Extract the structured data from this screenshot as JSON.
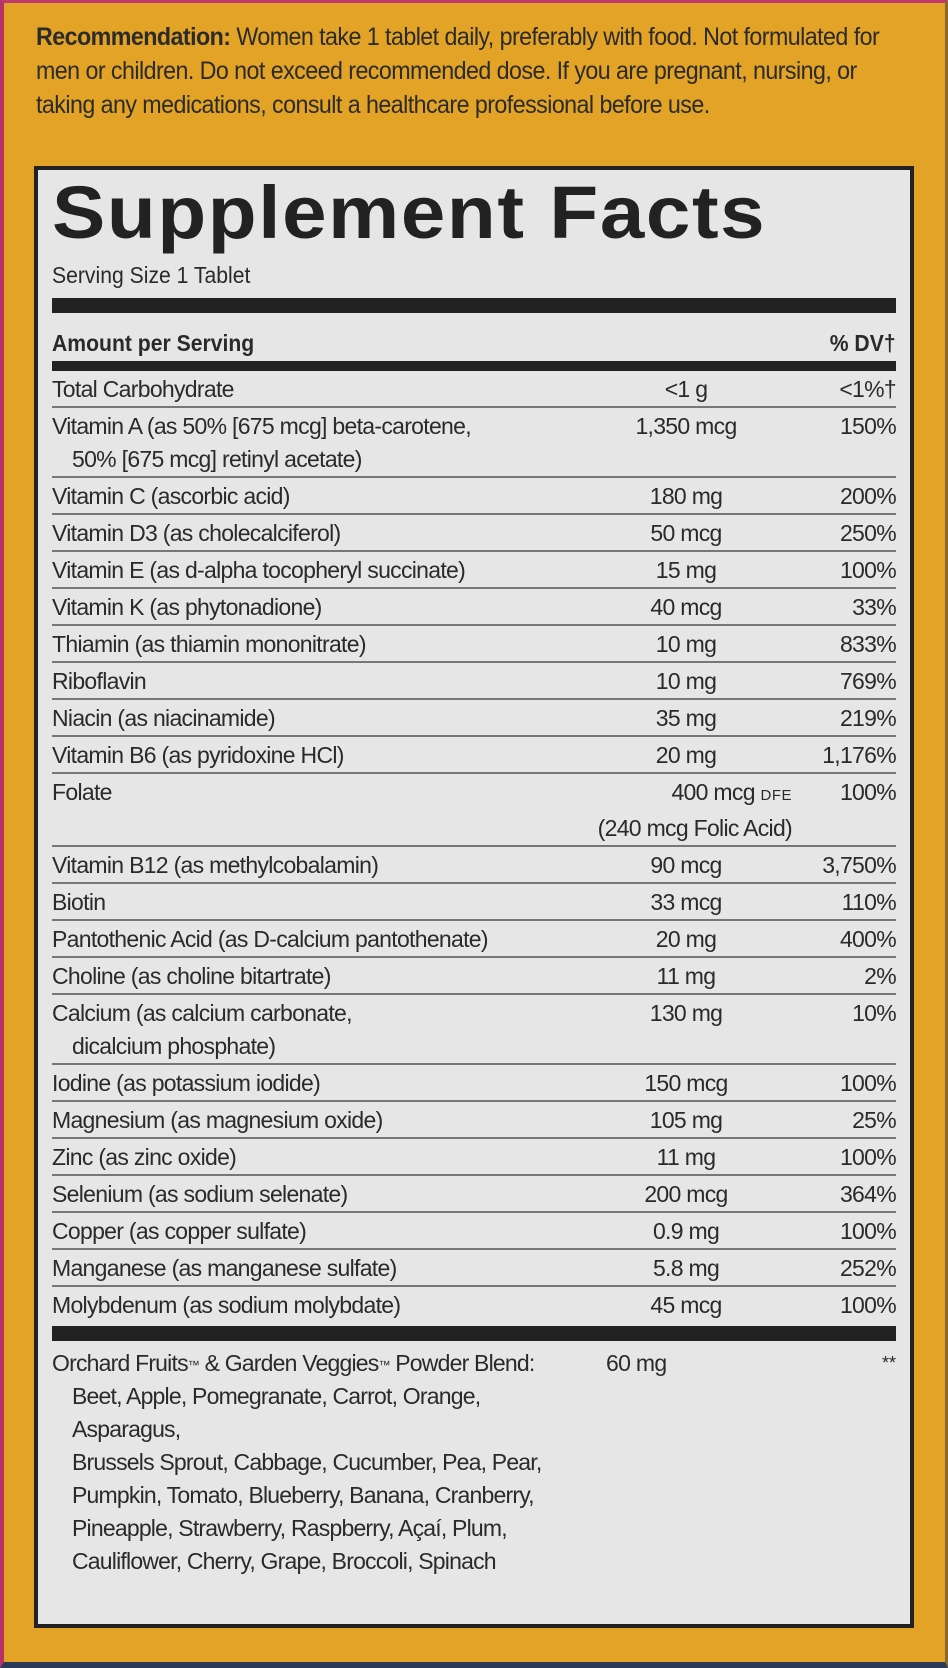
{
  "colors": {
    "background": "#e2a326",
    "panel": "#e6e6e6",
    "ink": "#222222",
    "frame_left": "#b8326a",
    "frame_bottom": "#2c3a5a"
  },
  "recommendation": {
    "label": "Recommendation:",
    "text": " Women take 1 tablet daily, preferably with food. Not formulated for men or children. Do not exceed recommended dose. If you are pregnant, nursing, or taking any medications, consult a healthcare professional before use."
  },
  "facts": {
    "title": "Supplement Facts",
    "serving_size": "Serving Size 1 Tablet",
    "header_left": "Amount per Serving",
    "header_right": "% DV†",
    "rows": [
      {
        "name": "Total Carbohydrate",
        "sub": "",
        "amount": "<1 g",
        "dv": "<1%†"
      },
      {
        "name": "Vitamin A (as 50% [675 mcg] beta-carotene,",
        "sub": "50% [675 mcg] retinyl acetate)",
        "amount": "1,350 mcg",
        "dv": "150%"
      },
      {
        "name": "Vitamin C (ascorbic acid)",
        "sub": "",
        "amount": "180 mg",
        "dv": "200%"
      },
      {
        "name": "Vitamin D3 (as cholecalciferol)",
        "sub": "",
        "amount": "50 mcg",
        "dv": "250%"
      },
      {
        "name": "Vitamin E (as d-alpha tocopheryl succinate)",
        "sub": "",
        "amount": "15 mg",
        "dv": "100%"
      },
      {
        "name": "Vitamin K (as phytonadione)",
        "sub": "",
        "amount": "40 mcg",
        "dv": "33%"
      },
      {
        "name": "Thiamin (as thiamin mononitrate)",
        "sub": "",
        "amount": "10 mg",
        "dv": "833%"
      },
      {
        "name": "Riboflavin",
        "sub": "",
        "amount": "10 mg",
        "dv": "769%"
      },
      {
        "name": "Niacin (as niacinamide)",
        "sub": "",
        "amount": "35 mg",
        "dv": "219%"
      },
      {
        "name": "Vitamin B6 (as pyridoxine HCl)",
        "sub": "",
        "amount": "20 mg",
        "dv": "1,176%"
      },
      {
        "name": "Folate",
        "sub": "",
        "amount": "400 mcg",
        "amount_unit_note": "DFE",
        "amount_sub": "(240 mcg Folic Acid)",
        "dv": "100%"
      },
      {
        "name": "Vitamin B12 (as methylcobalamin)",
        "sub": "",
        "amount": "90 mcg",
        "dv": "3,750%"
      },
      {
        "name": "Biotin",
        "sub": "",
        "amount": "33 mcg",
        "dv": "110%"
      },
      {
        "name": "Pantothenic Acid (as D-calcium pantothenate)",
        "sub": "",
        "amount": "20 mg",
        "dv": "400%"
      },
      {
        "name": "Choline (as choline bitartrate)",
        "sub": "",
        "amount": "11 mg",
        "dv": "2%"
      },
      {
        "name": "Calcium (as calcium carbonate,",
        "sub": "dicalcium phosphate)",
        "amount": "130 mg",
        "dv": "10%"
      },
      {
        "name": "Iodine (as potassium iodide)",
        "sub": "",
        "amount": "150 mcg",
        "dv": "100%"
      },
      {
        "name": "Magnesium (as magnesium oxide)",
        "sub": "",
        "amount": "105 mg",
        "dv": "25%"
      },
      {
        "name": "Zinc (as zinc oxide)",
        "sub": "",
        "amount": "11 mg",
        "dv": "100%"
      },
      {
        "name": "Selenium (as sodium selenate)",
        "sub": "",
        "amount": "200 mcg",
        "dv": "364%"
      },
      {
        "name": "Copper (as copper sulfate)",
        "sub": "",
        "amount": "0.9 mg",
        "dv": "100%"
      },
      {
        "name": "Manganese (as manganese sulfate)",
        "sub": "",
        "amount": "5.8 mg",
        "dv": "252%"
      },
      {
        "name": "Molybdenum (as sodium molybdate)",
        "sub": "",
        "amount": "45 mcg",
        "dv": "100%"
      }
    ],
    "blend": {
      "name_part1": "Orchard Fruits",
      "tm1": "™",
      "name_part2": " & Garden Veggies",
      "tm2": "™",
      "name_part3": " Powder Blend:",
      "ingredients_lines": [
        "Beet, Apple, Pomegranate, Carrot, Orange, Asparagus,",
        "Brussels Sprout, Cabbage, Cucumber, Pea, Pear,",
        "Pumpkin, Tomato, Blueberry, Banana, Cranberry,",
        "Pineapple, Strawberry, Raspberry, Açaí, Plum,",
        "Cauliflower, Cherry, Grape, Broccoli, Spinach"
      ],
      "amount": "60 mg",
      "dv": "**"
    }
  }
}
